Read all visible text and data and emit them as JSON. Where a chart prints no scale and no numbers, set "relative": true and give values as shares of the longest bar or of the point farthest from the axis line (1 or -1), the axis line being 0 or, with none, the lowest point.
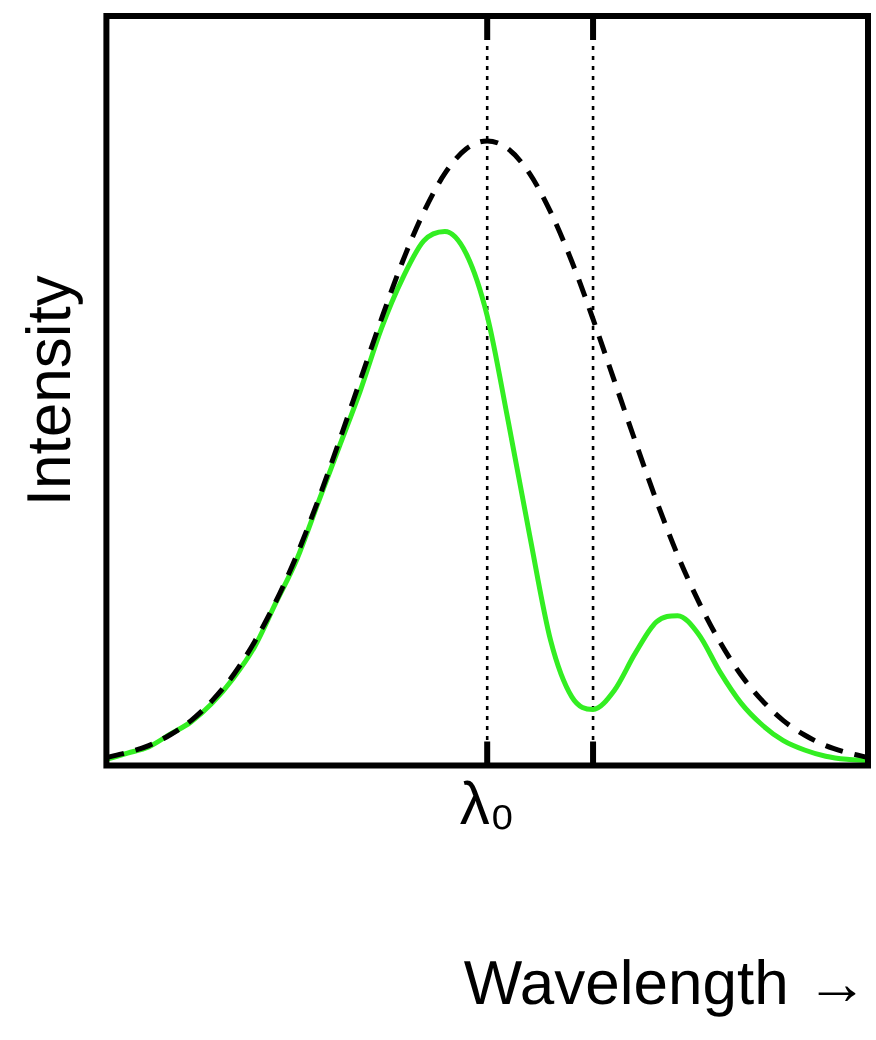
{
  "chart_data": {
    "type": "line",
    "relative": true,
    "xlabel": "Wavelength →",
    "ylabel": "Intensity",
    "categories": [
      null,
      null,
      null,
      null,
      null,
      null,
      null,
      null,
      null,
      null,
      null,
      null,
      null,
      null,
      null,
      null,
      null,
      null,
      null,
      null,
      null,
      null,
      null,
      null,
      null,
      null,
      null,
      null,
      null,
      null,
      null,
      null,
      null,
      null,
      null,
      null,
      null
    ],
    "series": [
      {
        "color": "#000000",
        "line_style": "dashed",
        "values": [
          0.013,
          0.021,
          0.032,
          0.049,
          0.072,
          0.104,
          0.145,
          0.198,
          0.262,
          0.337,
          0.424,
          0.519,
          0.617,
          0.715,
          0.807,
          0.886,
          0.948,
          0.987,
          1,
          0.987,
          0.948,
          0.886,
          0.807,
          0.715,
          0.617,
          0.519,
          0.424,
          0.337,
          0.262,
          0.198,
          0.145,
          0.104,
          0.072,
          0.049,
          0.032,
          0.021,
          0.013
        ]
      },
      {
        "color": "#33ee22",
        "line_style": "solid",
        "values": [
          0.01,
          0.02,
          0.03,
          0.05,
          0.07,
          0.1,
          0.14,
          0.19,
          0.26,
          0.33,
          0.42,
          0.51,
          0.6,
          0.7,
          0.78,
          0.84,
          0.855,
          0.82,
          0.72,
          0.55,
          0.37,
          0.2,
          0.11,
          0.09,
          0.12,
          0.18,
          0.23,
          0.24,
          0.21,
          0.15,
          0.1,
          0.065,
          0.04,
          0.025,
          0.015,
          0.01,
          0.008
        ]
      }
    ],
    "annotations": [
      "λ₀"
    ],
    "grid": false,
    "legend": false,
    "marker": "none"
  }
}
